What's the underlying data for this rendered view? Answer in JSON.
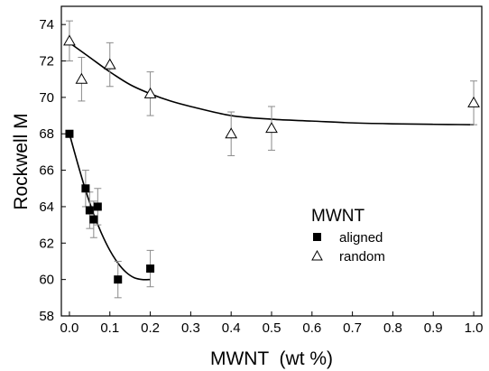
{
  "chart_data": {
    "type": "scatter",
    "title": "",
    "xlabel": "MWNT  (wt %)",
    "ylabel": "Rockwell M",
    "xlim": [
      -0.02,
      1.02
    ],
    "ylim": [
      58,
      75
    ],
    "x_ticks": [
      "0.0",
      "0.1",
      "0.2",
      "0.3",
      "0.4",
      "0.5",
      "0.6",
      "0.7",
      "0.8",
      "0.9",
      "1.0"
    ],
    "y_ticks": [
      "58",
      "60",
      "62",
      "64",
      "66",
      "68",
      "70",
      "72",
      "74"
    ],
    "legend": {
      "title": "MWNT",
      "position": "center-right"
    },
    "series": [
      {
        "name": "aligned",
        "marker": "filled-square",
        "x": [
          0.0,
          0.04,
          0.05,
          0.06,
          0.07,
          0.12,
          0.2
        ],
        "y": [
          68.0,
          65.0,
          63.8,
          63.3,
          64.0,
          60.0,
          60.6
        ],
        "err": [
          0,
          1.0,
          1.0,
          1.0,
          1.0,
          1.0,
          1.0
        ],
        "fit": {
          "x": [
            0.0,
            0.02,
            0.04,
            0.06,
            0.08,
            0.1,
            0.12,
            0.14,
            0.16,
            0.18,
            0.2
          ],
          "y": [
            68.0,
            66.4,
            64.9,
            63.6,
            62.5,
            61.6,
            60.9,
            60.4,
            60.1,
            60.0,
            60.0
          ]
        }
      },
      {
        "name": "random",
        "marker": "open-triangle",
        "x": [
          0.0,
          0.03,
          0.1,
          0.2,
          0.4,
          0.5,
          1.0
        ],
        "y": [
          73.1,
          71.0,
          71.8,
          70.2,
          68.0,
          68.3,
          69.7
        ],
        "err": [
          1.1,
          1.2,
          1.2,
          1.2,
          1.2,
          1.2,
          1.2
        ],
        "fit": {
          "x": [
            0.0,
            0.05,
            0.1,
            0.15,
            0.2,
            0.25,
            0.3,
            0.4,
            0.5,
            0.6,
            0.7,
            0.8,
            0.9,
            1.0
          ],
          "y": [
            73.0,
            72.2,
            71.4,
            70.7,
            70.2,
            69.8,
            69.5,
            69.0,
            68.8,
            68.7,
            68.6,
            68.55,
            68.52,
            68.5
          ]
        }
      }
    ],
    "colors": {
      "axis": "#000000",
      "errorbar": "#8a8a8a",
      "marker": "#000000"
    }
  }
}
